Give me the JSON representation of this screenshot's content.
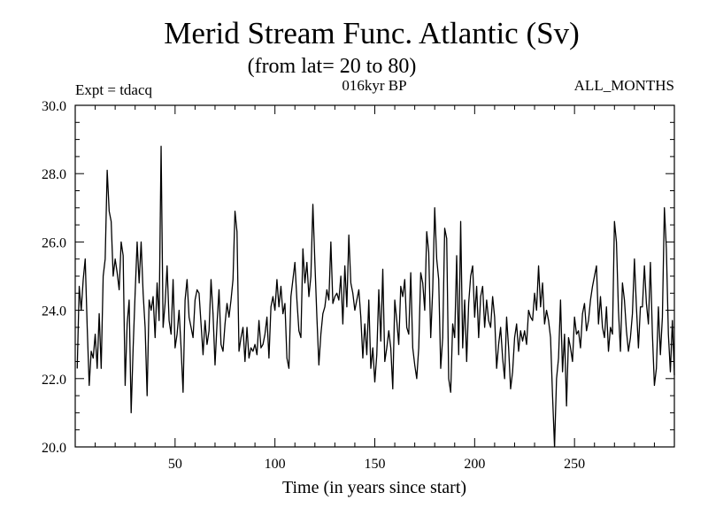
{
  "chart_data": {
    "type": "line",
    "title": "Merid Stream Func. Atlantic (Sv)",
    "subtitle": "(from lat= 20 to 80)",
    "experiment_label": "Expt = tdacq",
    "period_label": "016kyr BP",
    "months_label": "ALL_MONTHS",
    "xlabel": "Time (in years since start)",
    "ylabel": "",
    "xlim": [
      0,
      300
    ],
    "ylim": [
      20.0,
      30.0
    ],
    "x_ticks": [
      50,
      100,
      150,
      200,
      250
    ],
    "x_tick_labels": [
      "50",
      "100",
      "150",
      "200",
      "250"
    ],
    "y_ticks": [
      20.0,
      22.0,
      24.0,
      26.0,
      28.0,
      30.0
    ],
    "y_tick_labels": [
      "20.0",
      "22.0",
      "24.0",
      "26.0",
      "28.0",
      "30.0"
    ],
    "grid": false,
    "x_start": 1,
    "x_step": 1,
    "values": [
      22.3,
      24.7,
      24.0,
      24.9,
      25.5,
      23.5,
      21.8,
      22.8,
      22.6,
      23.3,
      22.3,
      23.9,
      22.3,
      25.0,
      25.5,
      28.1,
      26.9,
      26.6,
      25.0,
      25.5,
      25.1,
      24.6,
      26.0,
      25.6,
      21.8,
      23.6,
      24.3,
      21.0,
      22.9,
      24.5,
      26.0,
      24.8,
      26.0,
      24.5,
      23.5,
      21.5,
      24.3,
      24.0,
      24.4,
      23.2,
      24.8,
      23.7,
      28.8,
      23.5,
      24.2,
      25.3,
      23.7,
      23.3,
      24.9,
      22.9,
      23.3,
      24.0,
      22.9,
      21.6,
      24.3,
      24.9,
      23.8,
      23.5,
      23.2,
      24.3,
      24.6,
      24.5,
      23.6,
      22.7,
      23.7,
      23.0,
      23.4,
      24.9,
      23.9,
      22.4,
      23.6,
      24.6,
      23.0,
      22.8,
      23.6,
      24.2,
      23.8,
      24.3,
      24.9,
      26.9,
      26.3,
      22.8,
      23.2,
      23.5,
      22.5,
      23.5,
      22.6,
      22.9,
      22.8,
      23.0,
      22.7,
      23.7,
      22.9,
      23.0,
      23.3,
      23.8,
      22.6,
      24.1,
      24.4,
      24.0,
      24.9,
      24.1,
      24.7,
      23.9,
      24.2,
      22.6,
      22.3,
      24.4,
      24.9,
      25.4,
      24.3,
      23.4,
      23.2,
      25.8,
      24.8,
      25.4,
      24.4,
      25.0,
      27.1,
      25.4,
      23.8,
      22.4,
      23.3,
      23.9,
      24.1,
      24.6,
      24.3,
      26.0,
      24.2,
      24.4,
      24.5,
      24.3,
      25.0,
      23.6,
      25.3,
      24.1,
      26.2,
      24.8,
      24.5,
      24.0,
      24.3,
      24.6,
      23.8,
      22.6,
      23.6,
      22.7,
      24.3,
      22.3,
      22.9,
      21.9,
      22.7,
      24.6,
      23.1,
      25.2,
      22.5,
      22.9,
      23.4,
      22.9,
      21.7,
      24.3,
      23.7,
      23.0,
      24.7,
      24.4,
      24.9,
      23.5,
      23.3,
      25.1,
      22.9,
      22.4,
      22.0,
      22.9,
      25.1,
      24.8,
      24.0,
      26.3,
      25.7,
      23.2,
      24.6,
      27.0,
      25.5,
      24.9,
      22.3,
      23.2,
      26.4,
      26.1,
      22.0,
      21.6,
      23.6,
      23.2,
      25.6,
      22.7,
      26.6,
      22.9,
      24.3,
      22.5,
      24.2,
      25.0,
      25.3,
      23.8,
      24.7,
      23.2,
      24.4,
      24.7,
      23.5,
      24.3,
      23.7,
      23.5,
      24.4,
      23.8,
      22.3,
      23.0,
      23.5,
      22.6,
      22.0,
      23.8,
      22.9,
      21.7,
      22.2,
      23.2,
      23.6,
      22.8,
      23.4,
      23.1,
      23.4,
      23.0,
      24.0,
      23.8,
      23.7,
      24.5,
      24.0,
      25.3,
      24.1,
      24.8,
      23.6,
      24.0,
      23.7,
      23.2,
      21.5,
      20.0,
      22.0,
      22.6,
      24.3,
      22.2,
      23.3,
      21.2,
      23.2,
      22.9,
      22.5,
      23.8,
      23.3,
      23.4,
      22.9,
      23.9,
      24.2,
      23.4,
      23.7,
      24.3,
      24.7,
      25.0,
      25.3,
      23.6,
      24.4,
      23.5,
      23.2,
      24.1,
      22.8,
      23.5,
      23.3,
      26.6,
      26.0,
      24.0,
      22.8,
      24.8,
      24.3,
      23.4,
      22.8,
      23.2,
      23.9,
      25.5,
      24.1,
      22.9,
      24.1,
      24.1,
      25.3,
      24.2,
      23.6,
      25.4,
      23.3,
      21.8,
      22.3,
      24.1,
      22.7,
      23.8,
      27.0,
      25.8,
      23.3,
      22.2,
      23.7,
      22.1
    ]
  }
}
